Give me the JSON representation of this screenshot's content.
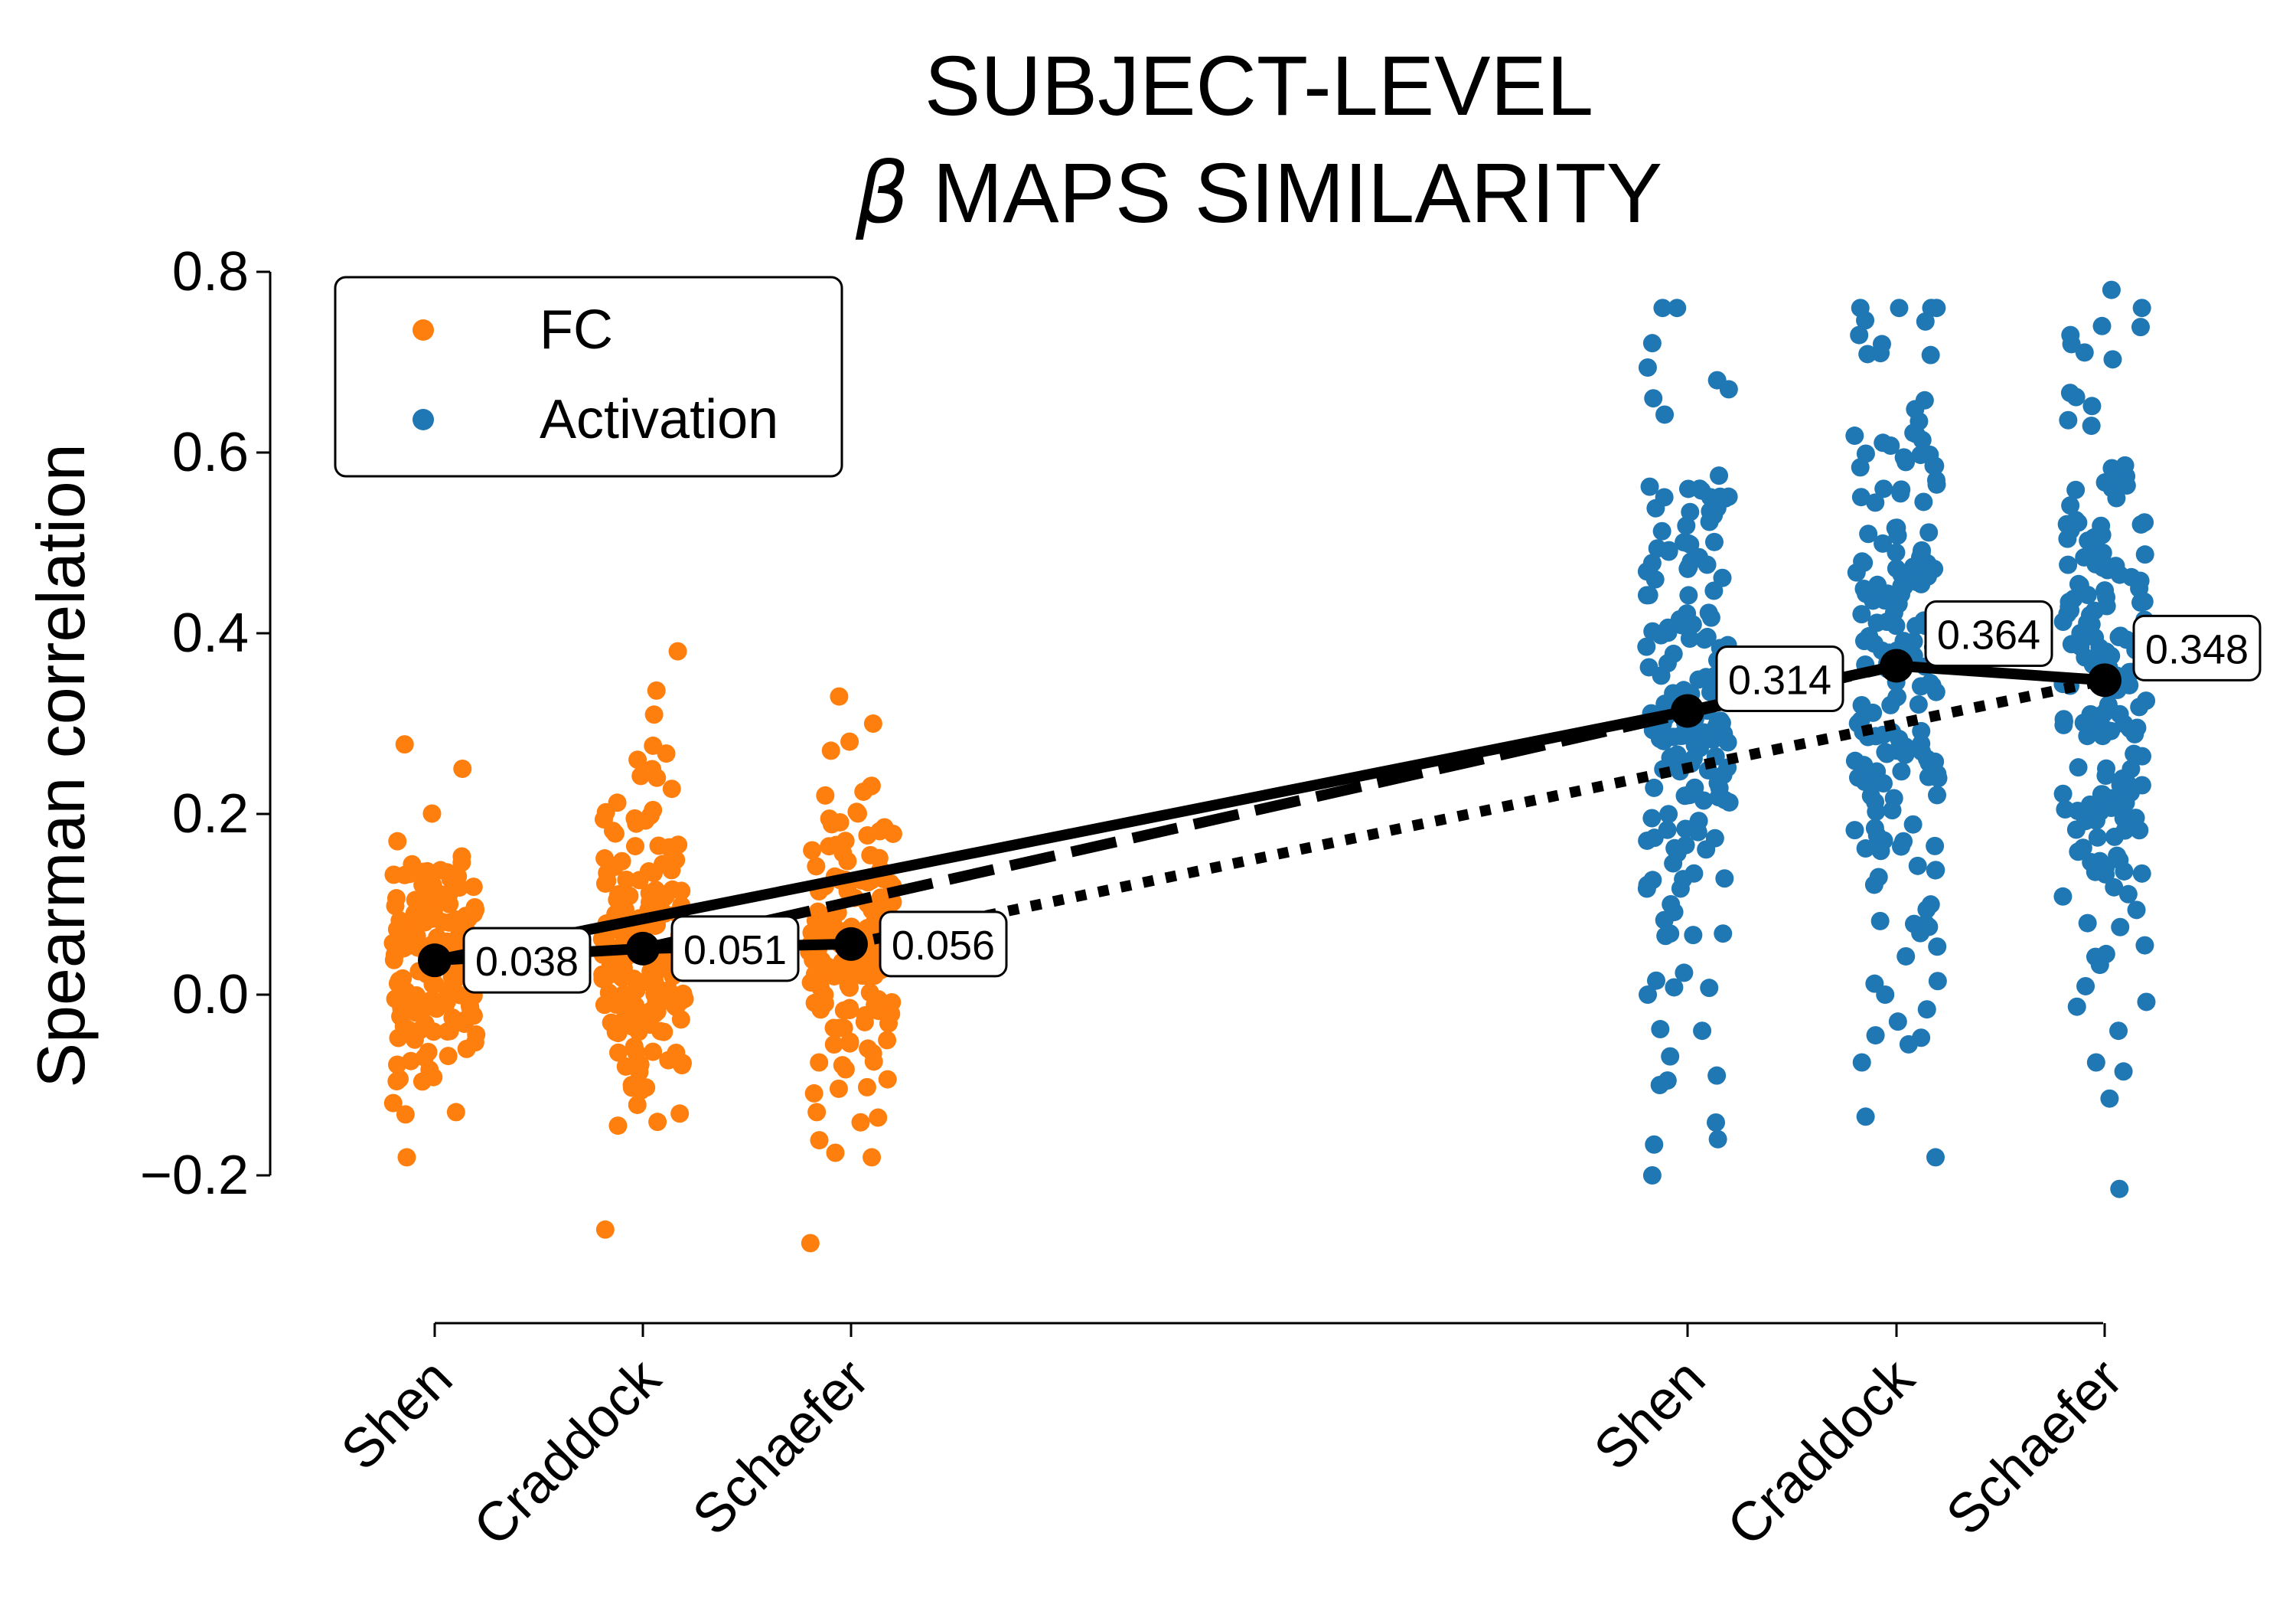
{
  "chart_data": {
    "type": "scatter",
    "title_line1": "SUBJECT-LEVEL",
    "title_line2_symbol": "β",
    "title_line2_text": " MAPS SIMILARITY",
    "ylabel": "Spearman correlation",
    "xlabel": "",
    "ylim": [
      -0.2,
      0.8
    ],
    "yticks": [
      -0.2,
      0.0,
      0.2,
      0.4,
      0.6,
      0.8
    ],
    "ytick_labels": [
      "−0.2",
      "0.0",
      "0.2",
      "0.4",
      "0.6",
      "0.8"
    ],
    "categories": [
      "Shen",
      "Craddock",
      "Schaefer",
      "Shen",
      "Craddock",
      "Schaefer"
    ],
    "grid": false,
    "legend_placement": "top-left",
    "legend": [
      {
        "name": "FC",
        "color": "#ff7f0e"
      },
      {
        "name": "Activation",
        "color": "#1f77b4"
      }
    ],
    "groups": [
      {
        "series": "FC",
        "atlas": "Shen",
        "mean": 0.038,
        "mean_label": "0.038",
        "n_points": 150,
        "spread": 0.065,
        "outliers": [
          0.277,
          0.25,
          -0.18,
          -0.12,
          -0.13
        ]
      },
      {
        "series": "FC",
        "atlas": "Craddock",
        "mean": 0.051,
        "mean_label": "0.051",
        "n_points": 170,
        "spread": 0.075,
        "outliers": [
          0.38,
          0.31,
          0.26,
          0.24,
          -0.26,
          -0.145,
          -0.1
        ]
      },
      {
        "series": "FC",
        "atlas": "Schaefer",
        "mean": 0.056,
        "mean_label": "0.056",
        "n_points": 150,
        "spread": 0.075,
        "outliers": [
          0.33,
          0.3,
          0.28,
          0.27,
          -0.275,
          -0.175,
          -0.13
        ]
      },
      {
        "series": "Activation",
        "atlas": "Shen",
        "mean": 0.314,
        "mean_label": "0.314",
        "n_points": 170,
        "spread": 0.16,
        "outliers": [
          0.68,
          0.67,
          0.66,
          -0.2,
          -0.16,
          -0.1,
          -0.095,
          0.0,
          -0.04
        ]
      },
      {
        "series": "Activation",
        "atlas": "Craddock",
        "mean": 0.364,
        "mean_label": "0.364",
        "n_points": 180,
        "spread": 0.17,
        "outliers": [
          0.745,
          0.73,
          0.72,
          0.71,
          -0.135,
          -0.075,
          -0.055,
          -0.045,
          0.0
        ]
      },
      {
        "series": "Activation",
        "atlas": "Schaefer",
        "mean": 0.348,
        "mean_label": "0.348",
        "n_points": 170,
        "spread": 0.17,
        "outliers": [
          0.78,
          0.74,
          0.73,
          0.72,
          -0.215,
          -0.115,
          -0.085,
          -0.075,
          -0.04
        ]
      }
    ],
    "connectors": [
      {
        "atlas": "Shen",
        "style": "solid",
        "from": 0.038,
        "to": 0.314
      },
      {
        "atlas": "Craddock",
        "style": "dashed",
        "from": 0.051,
        "to": 0.364
      },
      {
        "atlas": "Schaefer",
        "style": "dotted",
        "from": 0.056,
        "to": 0.348
      }
    ],
    "within_series_lines": [
      {
        "series": "FC",
        "values": [
          0.038,
          0.051,
          0.056
        ]
      },
      {
        "series": "Activation",
        "values": [
          0.314,
          0.364,
          0.348
        ]
      }
    ]
  }
}
